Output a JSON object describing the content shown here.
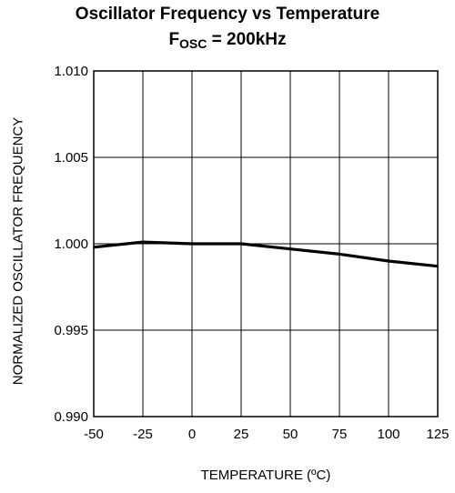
{
  "chart_data": {
    "type": "line",
    "title": "Oscillator Frequency vs Temperature",
    "subtitle_prefix": "F",
    "subtitle_sub": "OSC",
    "subtitle_suffix": " = 200kHz",
    "xlabel": "TEMPERATURE (ºC)",
    "ylabel": "NORMALIZED OSCILLATOR FREQUENCY",
    "xlim": [
      -50,
      125
    ],
    "ylim": [
      0.99,
      1.01
    ],
    "x_ticks": [
      "-50",
      "-25",
      "0",
      "25",
      "50",
      "75",
      "100",
      "125"
    ],
    "y_ticks": [
      "0.990",
      "0.995",
      "1.000",
      "1.005",
      "1.010"
    ],
    "grid": true,
    "series": [
      {
        "x": [
          -50,
          -25,
          0,
          25,
          50,
          75,
          100,
          125
        ],
        "y": [
          0.9998,
          1.0001,
          1.0,
          1.0,
          0.9997,
          0.9994,
          0.999,
          0.9987
        ]
      }
    ],
    "line_color": "#000000"
  }
}
